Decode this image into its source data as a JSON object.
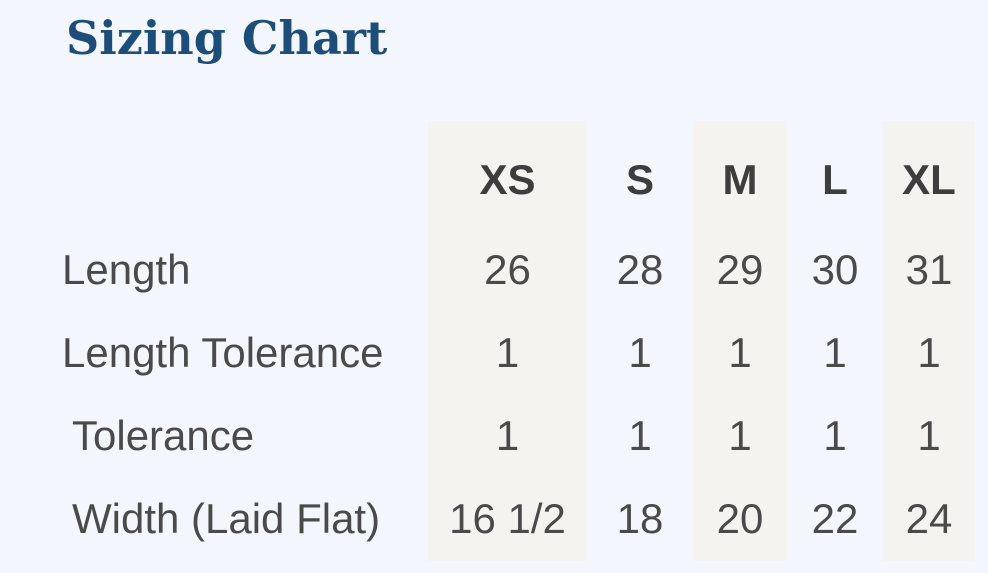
{
  "title": "Sizing Chart",
  "style": {
    "page_background": "#f3f6fc",
    "stripe_color": "#f4f3f0",
    "title_color": "#1d4e79",
    "header_text_color": "#3d3d3d",
    "body_text_color": "#4a4a4a"
  },
  "chart_data": {
    "type": "table",
    "title": "Sizing Chart",
    "columns": [
      "XS",
      "S",
      "M",
      "L",
      "XL"
    ],
    "shaded_columns": [
      "XS",
      "M",
      "XL"
    ],
    "rows": [
      {
        "label": "Length",
        "values": [
          "26",
          "28",
          "29",
          "30",
          "31"
        ]
      },
      {
        "label": "Length Tolerance",
        "values": [
          "1",
          "1",
          "1",
          "1",
          "1"
        ]
      },
      {
        "label": "Tolerance",
        "values": [
          "1",
          "1",
          "1",
          "1",
          "1"
        ]
      },
      {
        "label": "Width (Laid Flat)",
        "values": [
          "16 1/2",
          "18",
          "20",
          "22",
          "24"
        ]
      }
    ]
  }
}
